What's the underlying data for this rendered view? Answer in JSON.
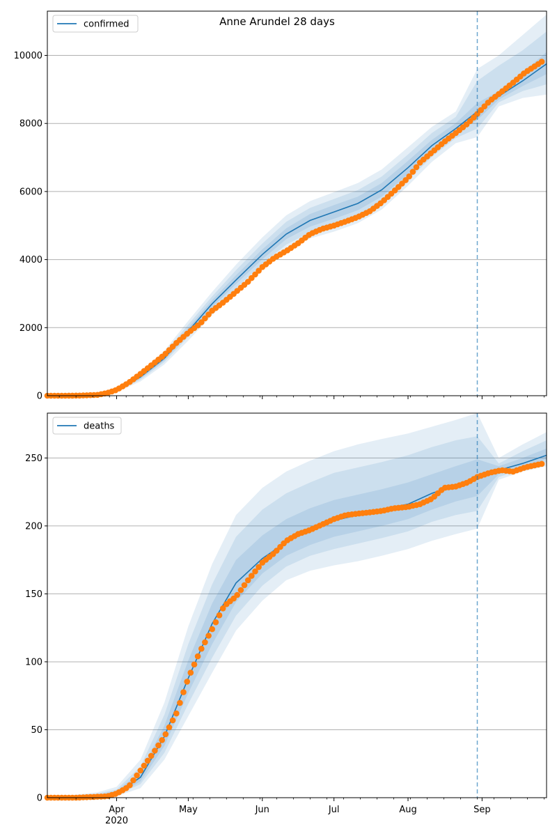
{
  "figure": {
    "title": "Anne Arundel 28 days"
  },
  "colors": {
    "line": "#1f77b4",
    "points": "#ff7f0e",
    "band": "#1f77b4",
    "grid": "#b0b0b0",
    "vline": "#1f77b4"
  },
  "chart_data": [
    {
      "type": "line",
      "title": "Anne Arundel 28 days",
      "xlabel": "",
      "ylabel": "",
      "legend": {
        "label": "confirmed",
        "placement": "top-left"
      },
      "grid": "horizontal",
      "x_axis": {
        "type": "date",
        "range": [
          "2020-03-03",
          "2020-09-28"
        ],
        "ticks": [
          {
            "date": "2020-04-01",
            "label": "Apr",
            "sublabel": "2020"
          },
          {
            "date": "2020-05-01",
            "label": "May"
          },
          {
            "date": "2020-06-01",
            "label": "Jun"
          },
          {
            "date": "2020-07-01",
            "label": "Jul"
          },
          {
            "date": "2020-08-01",
            "label": "Aug"
          },
          {
            "date": "2020-09-01",
            "label": "Sep"
          }
        ]
      },
      "ylim": [
        0,
        11300
      ],
      "yticks": [
        0,
        2000,
        4000,
        6000,
        8000,
        10000
      ],
      "forecast_start": "2020-08-30",
      "model": {
        "name": "confirmed",
        "x": [
          "2020-03-03",
          "2020-03-24",
          "2020-04-01",
          "2020-04-11",
          "2020-04-21",
          "2020-05-01",
          "2020-05-11",
          "2020-05-21",
          "2020-06-01",
          "2020-06-11",
          "2020-06-21",
          "2020-07-01",
          "2020-07-11",
          "2020-07-21",
          "2020-08-01",
          "2020-08-11",
          "2020-08-21",
          "2020-08-30",
          "2020-09-08",
          "2020-09-18",
          "2020-09-28"
        ],
        "y": [
          0,
          20,
          150,
          550,
          1100,
          1900,
          2700,
          3400,
          4150,
          4750,
          5150,
          5400,
          5650,
          6050,
          6700,
          7350,
          7850,
          8350,
          8800,
          9250,
          9750
        ],
        "bands": [
          {
            "lower": [
              0,
              10,
              110,
              420,
              920,
              1620,
              2370,
              3020,
              3720,
              4270,
              4620,
              4820,
              5070,
              5470,
              6170,
              6870,
              7420,
              7600,
              8500,
              8750,
              8850
            ],
            "upper": [
              0,
              35,
              200,
              700,
              1320,
              2200,
              3050,
              3850,
              4650,
              5300,
              5720,
              5980,
              6250,
              6650,
              7300,
              7900,
              8350,
              9600,
              10000,
              10600,
              11200
            ]
          },
          {
            "lower": [
              0,
              14,
              125,
              470,
              990,
              1730,
              2500,
              3160,
              3880,
              4440,
              4800,
              5010,
              5260,
              5660,
              6330,
              7020,
              7570,
              7850,
              8620,
              8950,
              9150
            ],
            "upper": [
              0,
              28,
              180,
              640,
              1240,
              2090,
              2920,
              3690,
              4470,
              5110,
              5520,
              5780,
              6040,
              6440,
              7090,
              7720,
              8190,
              9250,
              9700,
              10150,
              10700
            ]
          },
          {
            "lower": [
              0,
              17,
              138,
              510,
              1040,
              1810,
              2600,
              3280,
              4010,
              4600,
              4970,
              5200,
              5450,
              5850,
              6510,
              7180,
              7700,
              8100,
              8700,
              9100,
              9450
            ],
            "upper": [
              0,
              24,
              165,
              590,
              1170,
              1990,
              2810,
              3540,
              4300,
              4920,
              5340,
              5600,
              5850,
              6250,
              6900,
              7520,
              8010,
              8600,
              8950,
              9500,
              10100
            ]
          }
        ]
      },
      "observed": {
        "name": "confirmed (observed)",
        "x": [
          "2020-03-03",
          "2020-03-10",
          "2020-03-17",
          "2020-03-24",
          "2020-03-28",
          "2020-04-01",
          "2020-04-06",
          "2020-04-11",
          "2020-04-16",
          "2020-04-21",
          "2020-04-26",
          "2020-05-01",
          "2020-05-06",
          "2020-05-11",
          "2020-05-16",
          "2020-05-21",
          "2020-05-26",
          "2020-06-01",
          "2020-06-06",
          "2020-06-11",
          "2020-06-16",
          "2020-06-21",
          "2020-06-26",
          "2020-07-01",
          "2020-07-06",
          "2020-07-11",
          "2020-07-16",
          "2020-07-21",
          "2020-07-26",
          "2020-08-01",
          "2020-08-06",
          "2020-08-11",
          "2020-08-16",
          "2020-08-21",
          "2020-08-26",
          "2020-08-30",
          "2020-09-04",
          "2020-09-09",
          "2020-09-14",
          "2020-09-19",
          "2020-09-24",
          "2020-09-27"
        ],
        "y": [
          0,
          0,
          5,
          25,
          80,
          170,
          380,
          640,
          920,
          1200,
          1550,
          1850,
          2120,
          2500,
          2760,
          3050,
          3350,
          3780,
          4050,
          4250,
          4480,
          4750,
          4900,
          5000,
          5120,
          5250,
          5420,
          5680,
          6000,
          6400,
          6850,
          7150,
          7450,
          7720,
          8000,
          8280,
          8650,
          8920,
          9200,
          9500,
          9720,
          9860
        ]
      }
    },
    {
      "type": "line",
      "title": "",
      "xlabel": "",
      "ylabel": "",
      "legend": {
        "label": "deaths",
        "placement": "top-left"
      },
      "grid": "horizontal",
      "x_axis": {
        "type": "date",
        "range": [
          "2020-03-03",
          "2020-09-28"
        ],
        "ticks": [
          {
            "date": "2020-04-01",
            "label": "Apr",
            "sublabel": "2020"
          },
          {
            "date": "2020-05-01",
            "label": "May"
          },
          {
            "date": "2020-06-01",
            "label": "Jun"
          },
          {
            "date": "2020-07-01",
            "label": "Jul"
          },
          {
            "date": "2020-08-01",
            "label": "Aug"
          },
          {
            "date": "2020-09-01",
            "label": "Sep"
          }
        ]
      },
      "ylim": [
        0,
        283
      ],
      "yticks": [
        0,
        50,
        100,
        150,
        200,
        250
      ],
      "forecast_start": "2020-08-30",
      "model": {
        "name": "deaths",
        "x": [
          "2020-03-03",
          "2020-03-24",
          "2020-04-01",
          "2020-04-11",
          "2020-04-21",
          "2020-05-01",
          "2020-05-11",
          "2020-05-21",
          "2020-06-01",
          "2020-06-11",
          "2020-06-21",
          "2020-07-01",
          "2020-07-11",
          "2020-07-21",
          "2020-08-01",
          "2020-08-11",
          "2020-08-21",
          "2020-08-30",
          "2020-09-08",
          "2020-09-18",
          "2020-09-28"
        ],
        "y": [
          0,
          1,
          3,
          15,
          45,
          88,
          128,
          158,
          176,
          188,
          197,
          204,
          208,
          212,
          216,
          224,
          230,
          236,
          241,
          246,
          252
        ],
        "bands": [
          {
            "lower": [
              0,
              0,
              1,
              7,
              28,
              60,
              92,
              123,
              145,
              160,
              167,
              171,
              174,
              178,
              183,
              189,
              194,
              198,
              234,
              240,
              244
            ],
            "upper": [
              0,
              4,
              8,
              28,
              70,
              126,
              172,
              208,
              228,
              240,
              248,
              255,
              260,
              264,
              268,
              273,
              278,
              283,
              250,
              260,
              269
            ]
          },
          {
            "lower": [
              0,
              0,
              2,
              10,
              33,
              69,
              103,
              134,
              156,
              170,
              178,
              183,
              187,
              191,
              196,
              203,
              208,
              211,
              236,
              242,
              247
            ],
            "upper": [
              0,
              3,
              6,
              23,
              61,
              113,
              157,
              192,
              212,
              224,
              232,
              239,
              243,
              247,
              252,
              258,
              263,
              266,
              246,
              255,
              263
            ]
          },
          {
            "lower": [
              0,
              1,
              2,
              12,
              38,
              77,
              113,
              144,
              165,
              178,
              186,
              192,
              196,
              200,
              205,
              212,
              218,
              222,
              238,
              243,
              249
            ],
            "upper": [
              0,
              2,
              5,
              19,
              53,
              101,
              143,
              175,
              193,
              205,
              213,
              219,
              223,
              227,
              232,
              238,
              244,
              249,
              244,
              250,
              257
            ]
          }
        ]
      },
      "observed": {
        "name": "deaths (observed)",
        "x": [
          "2020-03-03",
          "2020-03-15",
          "2020-03-28",
          "2020-04-01",
          "2020-04-06",
          "2020-04-11",
          "2020-04-16",
          "2020-04-21",
          "2020-04-26",
          "2020-05-01",
          "2020-05-06",
          "2020-05-11",
          "2020-05-16",
          "2020-05-21",
          "2020-05-26",
          "2020-06-01",
          "2020-06-06",
          "2020-06-11",
          "2020-06-16",
          "2020-06-21",
          "2020-06-26",
          "2020-07-01",
          "2020-07-06",
          "2020-07-11",
          "2020-07-16",
          "2020-07-21",
          "2020-07-26",
          "2020-08-01",
          "2020-08-06",
          "2020-08-11",
          "2020-08-16",
          "2020-08-21",
          "2020-08-26",
          "2020-08-30",
          "2020-09-04",
          "2020-09-09",
          "2020-09-14",
          "2020-09-19",
          "2020-09-24",
          "2020-09-27"
        ],
        "y": [
          0,
          0,
          1,
          3,
          8,
          20,
          32,
          45,
          62,
          88,
          108,
          124,
          141,
          148,
          160,
          173,
          180,
          189,
          194,
          197,
          201,
          205,
          208,
          209,
          210,
          211,
          213,
          214,
          216,
          220,
          228,
          229,
          232,
          236,
          239,
          241,
          240,
          243,
          245,
          246
        ]
      }
    }
  ]
}
